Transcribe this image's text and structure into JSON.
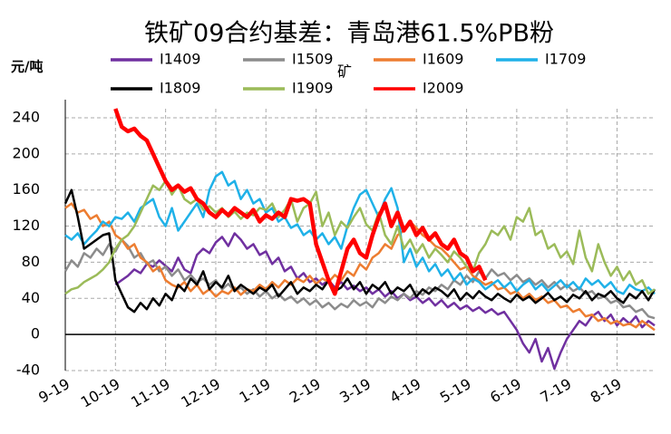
{
  "chart_data": {
    "type": "line",
    "title": "铁矿09合约基差：青岛港61.5%PB粉",
    "y_label": "元/吨",
    "annotation": "矿",
    "xlim": [
      0,
      94
    ],
    "xticks": [
      {
        "value": 0,
        "label": "9-19"
      },
      {
        "value": 8,
        "label": "10-19"
      },
      {
        "value": 16,
        "label": "11-19"
      },
      {
        "value": 24,
        "label": "12-19"
      },
      {
        "value": 32,
        "label": "1-19"
      },
      {
        "value": 40,
        "label": "2-19"
      },
      {
        "value": 48,
        "label": "3-19"
      },
      {
        "value": 56,
        "label": "4-19"
      },
      {
        "value": 64,
        "label": "5-19"
      },
      {
        "value": 72,
        "label": "6-19"
      },
      {
        "value": 80,
        "label": "7-19"
      },
      {
        "value": 88,
        "label": "8-19"
      }
    ],
    "ylim": [
      -40,
      250
    ],
    "yticks": [
      -40,
      0,
      40,
      80,
      120,
      160,
      200,
      240
    ],
    "grid": true,
    "series": [
      {
        "name": "I1409",
        "color": "#7030a0",
        "values": [
          null,
          null,
          null,
          null,
          null,
          null,
          null,
          null,
          55,
          60,
          65,
          72,
          68,
          78,
          75,
          82,
          76,
          70,
          85,
          72,
          68,
          88,
          95,
          90,
          102,
          108,
          98,
          112,
          105,
          95,
          100,
          88,
          92,
          78,
          85,
          70,
          75,
          62,
          68,
          58,
          62,
          55,
          60,
          52,
          58,
          50,
          54,
          48,
          52,
          45,
          50,
          42,
          48,
          40,
          45,
          38,
          42,
          35,
          40,
          32,
          38,
          30,
          35,
          28,
          32,
          26,
          30,
          24,
          28,
          22,
          25,
          15,
          5,
          -10,
          -20,
          -5,
          -30,
          -15,
          -38,
          -20,
          -5,
          5,
          15,
          10,
          20,
          25,
          15,
          22,
          10,
          18,
          12,
          20,
          8,
          15,
          10
        ]
      },
      {
        "name": "I1509",
        "color": "#8c8c8c",
        "values": [
          70,
          82,
          75,
          90,
          85,
          95,
          88,
          100,
          92,
          105,
          98,
          85,
          90,
          78,
          82,
          70,
          75,
          65,
          72,
          60,
          66,
          58,
          62,
          55,
          60,
          50,
          56,
          48,
          52,
          45,
          50,
          42,
          48,
          40,
          45,
          38,
          42,
          35,
          40,
          33,
          38,
          30,
          35,
          28,
          34,
          30,
          38,
          32,
          36,
          30,
          40,
          35,
          42,
          38,
          45,
          40,
          48,
          44,
          52,
          48,
          55,
          50,
          60,
          55,
          65,
          58,
          70,
          62,
          72,
          65,
          68,
          60,
          66,
          58,
          62,
          55,
          60,
          52,
          58,
          50,
          55,
          48,
          52,
          45,
          48,
          40,
          42,
          35,
          38,
          30,
          32,
          25,
          28,
          20,
          18
        ]
      },
      {
        "name": "I1609",
        "color": "#ed7d31",
        "values": [
          140,
          145,
          135,
          138,
          128,
          132,
          120,
          125,
          110,
          105,
          95,
          100,
          85,
          80,
          70,
          75,
          60,
          55,
          52,
          58,
          48,
          55,
          45,
          50,
          42,
          48,
          45,
          52,
          44,
          50,
          48,
          55,
          50,
          58,
          52,
          60,
          55,
          62,
          58,
          65,
          56,
          62,
          58,
          66,
          60,
          70,
          65,
          78,
          72,
          85,
          90,
          100,
          95,
          110,
          115,
          125,
          118,
          110,
          105,
          98,
          95,
          88,
          80,
          72,
          75,
          65,
          60,
          55,
          58,
          50,
          52,
          45,
          48,
          40,
          45,
          38,
          42,
          35,
          38,
          30,
          32,
          25,
          28,
          20,
          22,
          15,
          18,
          12,
          15,
          10,
          12,
          8,
          15,
          10,
          5
        ]
      },
      {
        "name": "I1709",
        "color": "#1fb1e8",
        "values": [
          110,
          105,
          112,
          100,
          108,
          115,
          125,
          120,
          130,
          128,
          135,
          125,
          140,
          145,
          150,
          130,
          120,
          140,
          115,
          125,
          135,
          145,
          130,
          160,
          175,
          180,
          165,
          170,
          150,
          160,
          145,
          150,
          135,
          140,
          125,
          130,
          118,
          122,
          110,
          115,
          105,
          112,
          100,
          108,
          95,
          120,
          140,
          155,
          160,
          145,
          130,
          150,
          162,
          140,
          80,
          95,
          75,
          85,
          70,
          78,
          65,
          72,
          60,
          68,
          55,
          62,
          58,
          50,
          55,
          60,
          52,
          58,
          48,
          55,
          60,
          50,
          56,
          48,
          54,
          60,
          52,
          58,
          50,
          62,
          55,
          60,
          52,
          58,
          48,
          45,
          55,
          50,
          48,
          52,
          45
        ]
      },
      {
        "name": "I1809",
        "color": "#000000",
        "values": [
          145,
          160,
          130,
          95,
          100,
          105,
          110,
          112,
          60,
          45,
          30,
          25,
          35,
          28,
          40,
          32,
          45,
          38,
          55,
          48,
          62,
          55,
          70,
          50,
          58,
          52,
          65,
          48,
          55,
          50,
          45,
          52,
          48,
          55,
          42,
          50,
          58,
          45,
          52,
          48,
          55,
          50,
          60,
          48,
          52,
          62,
          50,
          58,
          45,
          55,
          50,
          58,
          45,
          52,
          48,
          55,
          42,
          50,
          45,
          52,
          48,
          42,
          50,
          38,
          46,
          40,
          48,
          42,
          38,
          45,
          40,
          36,
          44,
          38,
          42,
          35,
          40,
          46,
          38,
          42,
          36,
          44,
          40,
          48,
          38,
          45,
          42,
          48,
          40,
          35,
          45,
          40,
          48,
          38,
          50
        ]
      },
      {
        "name": "I1909",
        "color": "#9bbb59",
        "values": [
          45,
          50,
          52,
          58,
          62,
          66,
          72,
          80,
          95,
          105,
          110,
          120,
          135,
          150,
          165,
          160,
          170,
          155,
          165,
          150,
          145,
          150,
          138,
          142,
          135,
          140,
          130,
          136,
          128,
          135,
          132,
          140,
          138,
          145,
          130,
          138,
          150,
          125,
          140,
          145,
          158,
          120,
          135,
          110,
          125,
          118,
          130,
          140,
          122,
          115,
          135,
          110,
          100,
          120,
          95,
          105,
          90,
          100,
          85,
          95,
          88,
          80,
          92,
          85,
          75,
          70,
          90,
          100,
          115,
          110,
          120,
          105,
          130,
          125,
          140,
          110,
          115,
          95,
          100,
          85,
          92,
          78,
          115,
          85,
          70,
          100,
          80,
          65,
          75,
          60,
          70,
          55,
          60,
          45,
          50
        ]
      },
      {
        "name": "I2009",
        "color": "#ff0000",
        "values": [
          null,
          null,
          null,
          null,
          null,
          null,
          null,
          null,
          250,
          230,
          225,
          228,
          220,
          215,
          200,
          185,
          170,
          160,
          165,
          158,
          162,
          150,
          145,
          135,
          130,
          138,
          132,
          140,
          135,
          130,
          138,
          125,
          132,
          128,
          135,
          130,
          150,
          148,
          150,
          145,
          100,
          80,
          60,
          45,
          70,
          95,
          105,
          90,
          85,
          110,
          130,
          145,
          120,
          135,
          115,
          125,
          110,
          118,
          105,
          112,
          100,
          95,
          105,
          90,
          85,
          70,
          75,
          60,
          null,
          null,
          null,
          null,
          null,
          null,
          null,
          null,
          null,
          null,
          null,
          null,
          null,
          null,
          null,
          null,
          null,
          null,
          null,
          null,
          null,
          null,
          null,
          null,
          null,
          null,
          null
        ]
      }
    ]
  }
}
